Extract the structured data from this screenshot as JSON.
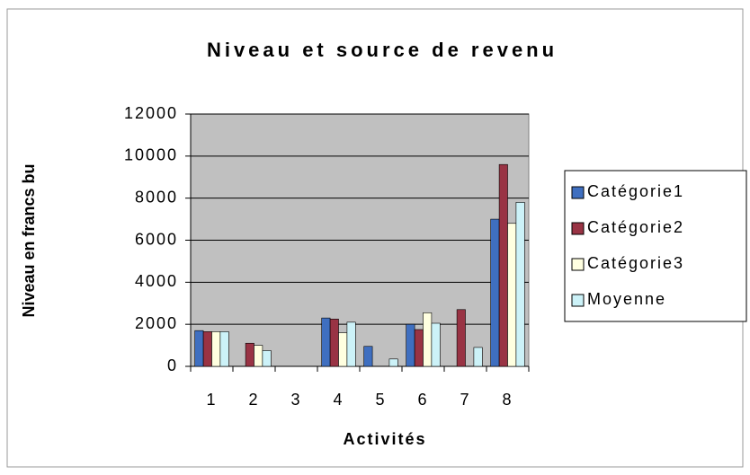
{
  "chart_data": {
    "type": "bar",
    "title": "Niveau et source de revenu",
    "x_label": "Activités",
    "y_label": "Niveau en francs bu",
    "categories": [
      "1",
      "2",
      "3",
      "4",
      "5",
      "6",
      "7",
      "8"
    ],
    "series": [
      {
        "name": "Catégorie1",
        "color": "#3f6fc0",
        "values": [
          1700,
          0,
          0,
          2300,
          950,
          2000,
          0,
          7000
        ]
      },
      {
        "name": "Catégorie2",
        "color": "#993344",
        "values": [
          1650,
          1100,
          0,
          2250,
          0,
          1750,
          2700,
          9600
        ]
      },
      {
        "name": "Catégorie3",
        "color": "#ffffe0",
        "values": [
          1650,
          1000,
          0,
          1600,
          0,
          2550,
          0,
          6800
        ]
      },
      {
        "name": "Moyenne",
        "color": "#ccf2f8",
        "values": [
          1650,
          750,
          0,
          2100,
          350,
          2050,
          900,
          7800
        ]
      }
    ],
    "ylim": [
      0,
      12000
    ],
    "yticks": [
      0,
      2000,
      4000,
      6000,
      8000,
      10000,
      12000
    ],
    "grid": true,
    "legend": "right"
  }
}
